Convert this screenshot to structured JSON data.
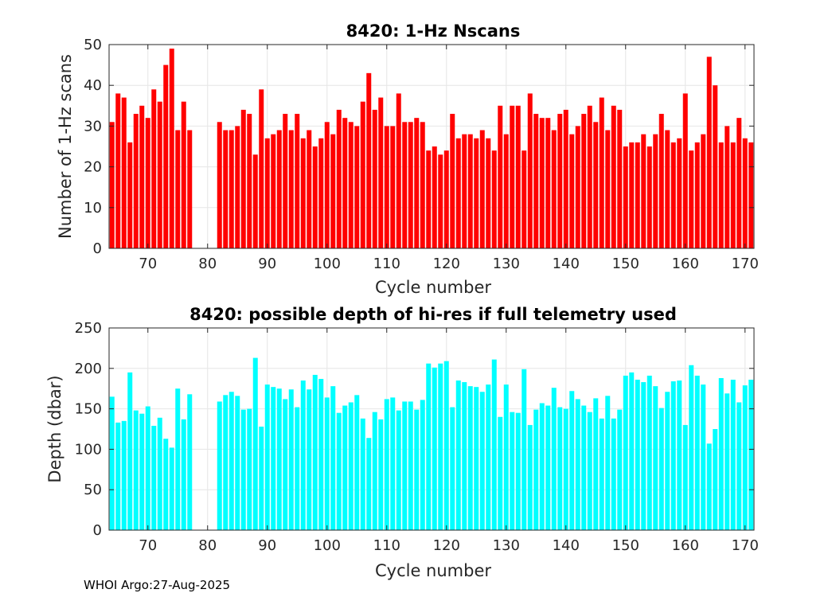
{
  "footer": "WHOI Argo:27-Aug-2025",
  "chart_data": [
    {
      "type": "bar",
      "title": "8420: 1-Hz Nscans",
      "xlabel": "Cycle number",
      "ylabel": "Number of 1-Hz scans",
      "color": "#ff0000",
      "xlim": [
        63.5,
        171.5
      ],
      "ylim": [
        0,
        50
      ],
      "xticks": [
        70,
        80,
        90,
        100,
        110,
        120,
        130,
        140,
        150,
        160,
        170
      ],
      "yticks": [
        0,
        10,
        20,
        30,
        40,
        50
      ],
      "grid": true,
      "x": [
        64,
        65,
        66,
        67,
        68,
        69,
        70,
        71,
        72,
        73,
        74,
        75,
        76,
        77,
        78,
        82,
        83,
        84,
        85,
        86,
        87,
        88,
        89,
        90,
        91,
        92,
        93,
        94,
        95,
        96,
        97,
        98,
        99,
        100,
        101,
        102,
        103,
        104,
        105,
        106,
        107,
        108,
        109,
        110,
        111,
        112,
        113,
        114,
        115,
        116,
        117,
        118,
        119,
        120,
        121,
        122,
        123,
        124,
        125,
        126,
        127,
        128,
        129,
        130,
        131,
        132,
        133,
        134,
        135,
        136,
        137,
        138,
        139,
        140,
        141,
        142,
        143,
        144,
        145,
        146,
        147,
        148,
        149,
        150,
        151,
        152,
        153,
        154,
        155,
        156,
        157,
        158,
        159,
        160,
        161,
        162,
        163,
        164,
        165,
        166,
        167,
        168,
        169,
        170,
        171
      ],
      "values": [
        31,
        38,
        37,
        26,
        33,
        35,
        32,
        39,
        36,
        45,
        49,
        29,
        36,
        29,
        null,
        31,
        29,
        29,
        30,
        34,
        33,
        23,
        39,
        27,
        28,
        29,
        33,
        29,
        33,
        27,
        29,
        25,
        27,
        31,
        28,
        34,
        32,
        31,
        30,
        36,
        43,
        34,
        37,
        30,
        30,
        38,
        31,
        31,
        32,
        31,
        24,
        25,
        23,
        24,
        33,
        27,
        28,
        28,
        27,
        29,
        27,
        24,
        35,
        28,
        35,
        35,
        24,
        38,
        33,
        32,
        32,
        29,
        33,
        34,
        28,
        30,
        33,
        35,
        31,
        37,
        29,
        35,
        34,
        25,
        26,
        26,
        28,
        25,
        28,
        33,
        29,
        26,
        27,
        38,
        24,
        26,
        28,
        47,
        40,
        26,
        30,
        26,
        32,
        27,
        26
      ]
    },
    {
      "type": "bar",
      "title": "8420: possible depth of hi-res if full telemetry used",
      "xlabel": "Cycle number",
      "ylabel": "Depth (dbar)",
      "color": "#00ffff",
      "xlim": [
        63.5,
        171.5
      ],
      "ylim": [
        0,
        250
      ],
      "xticks": [
        70,
        80,
        90,
        100,
        110,
        120,
        130,
        140,
        150,
        160,
        170
      ],
      "yticks": [
        0,
        50,
        100,
        150,
        200,
        250
      ],
      "grid": true,
      "x": [
        64,
        65,
        66,
        67,
        68,
        69,
        70,
        71,
        72,
        73,
        74,
        75,
        76,
        77,
        78,
        82,
        83,
        84,
        85,
        86,
        87,
        88,
        89,
        90,
        91,
        92,
        93,
        94,
        95,
        96,
        97,
        98,
        99,
        100,
        101,
        102,
        103,
        104,
        105,
        106,
        107,
        108,
        109,
        110,
        111,
        112,
        113,
        114,
        115,
        116,
        117,
        118,
        119,
        120,
        121,
        122,
        123,
        124,
        125,
        126,
        127,
        128,
        129,
        130,
        131,
        132,
        133,
        134,
        135,
        136,
        137,
        138,
        139,
        140,
        141,
        142,
        143,
        144,
        145,
        146,
        147,
        148,
        149,
        150,
        151,
        152,
        153,
        154,
        155,
        156,
        157,
        158,
        159,
        160,
        161,
        162,
        163,
        164,
        165,
        166,
        167,
        168,
        169,
        170,
        171
      ],
      "values": [
        165,
        133,
        135,
        195,
        148,
        144,
        153,
        129,
        139,
        113,
        102,
        175,
        137,
        168,
        null,
        159,
        167,
        171,
        166,
        149,
        150,
        213,
        128,
        180,
        177,
        175,
        162,
        174,
        152,
        185,
        174,
        192,
        187,
        164,
        178,
        145,
        154,
        158,
        167,
        138,
        114,
        146,
        137,
        162,
        164,
        148,
        159,
        159,
        149,
        161,
        206,
        201,
        206,
        209,
        152,
        185,
        183,
        178,
        177,
        171,
        180,
        211,
        140,
        180,
        146,
        145,
        199,
        130,
        149,
        157,
        154,
        176,
        152,
        150,
        172,
        162,
        154,
        146,
        163,
        138,
        166,
        138,
        149,
        191,
        195,
        186,
        183,
        191,
        178,
        151,
        171,
        184,
        185,
        130,
        204,
        191,
        180,
        107,
        125,
        188,
        169,
        186,
        158,
        179,
        186
      ]
    }
  ]
}
